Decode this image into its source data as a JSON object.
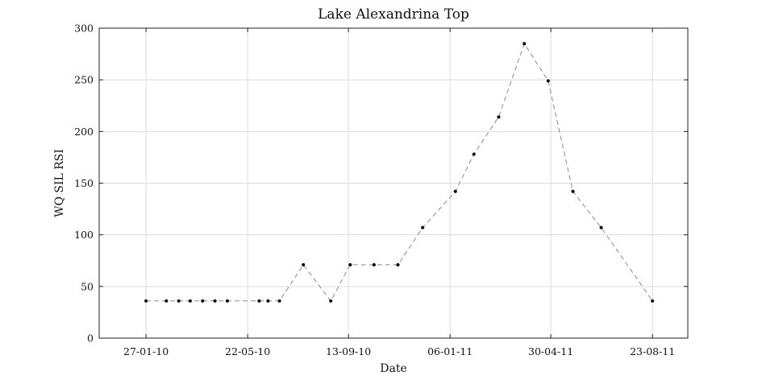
{
  "chart_data": {
    "type": "line",
    "title": "Lake Alexandrina Top",
    "xlabel": "Date",
    "ylabel": "WQ SIL RSI",
    "x_ticks": [
      {
        "date": "2010-01-27",
        "label": "27-01-10"
      },
      {
        "date": "2010-05-22",
        "label": "22-05-10"
      },
      {
        "date": "2010-09-13",
        "label": "13-09-10"
      },
      {
        "date": "2011-01-06",
        "label": "06-01-11"
      },
      {
        "date": "2011-04-30",
        "label": "30-04-11"
      },
      {
        "date": "2011-08-23",
        "label": "23-08-11"
      }
    ],
    "xlim": [
      "2009-12-05",
      "2011-10-02"
    ],
    "ylim": [
      0,
      300
    ],
    "y_ticks": [
      0,
      50,
      100,
      150,
      200,
      250,
      300
    ],
    "grid": true,
    "line_style": "dashed",
    "line_color": "#8a8a8a",
    "marker_color": "#111111",
    "series": [
      {
        "points": [
          {
            "x": "2010-01-27",
            "y": 36
          },
          {
            "x": "2010-02-19",
            "y": 36
          },
          {
            "x": "2010-03-05",
            "y": 36
          },
          {
            "x": "2010-03-18",
            "y": 36
          },
          {
            "x": "2010-04-01",
            "y": 36
          },
          {
            "x": "2010-04-15",
            "y": 36
          },
          {
            "x": "2010-04-29",
            "y": 36
          },
          {
            "x": "2010-06-04",
            "y": 36
          },
          {
            "x": "2010-06-14",
            "y": 36
          },
          {
            "x": "2010-06-27",
            "y": 36
          },
          {
            "x": "2010-07-24",
            "y": 71
          },
          {
            "x": "2010-08-24",
            "y": 36
          },
          {
            "x": "2010-09-15",
            "y": 71
          },
          {
            "x": "2010-10-12",
            "y": 71
          },
          {
            "x": "2010-11-08",
            "y": 71
          },
          {
            "x": "2010-12-06",
            "y": 107
          },
          {
            "x": "2011-01-12",
            "y": 142
          },
          {
            "x": "2011-02-02",
            "y": 178
          },
          {
            "x": "2011-03-02",
            "y": 214
          },
          {
            "x": "2011-03-31",
            "y": 285
          },
          {
            "x": "2011-04-27",
            "y": 249
          },
          {
            "x": "2011-05-25",
            "y": 142
          },
          {
            "x": "2011-06-26",
            "y": 107
          },
          {
            "x": "2011-08-23",
            "y": 36
          }
        ]
      }
    ]
  }
}
